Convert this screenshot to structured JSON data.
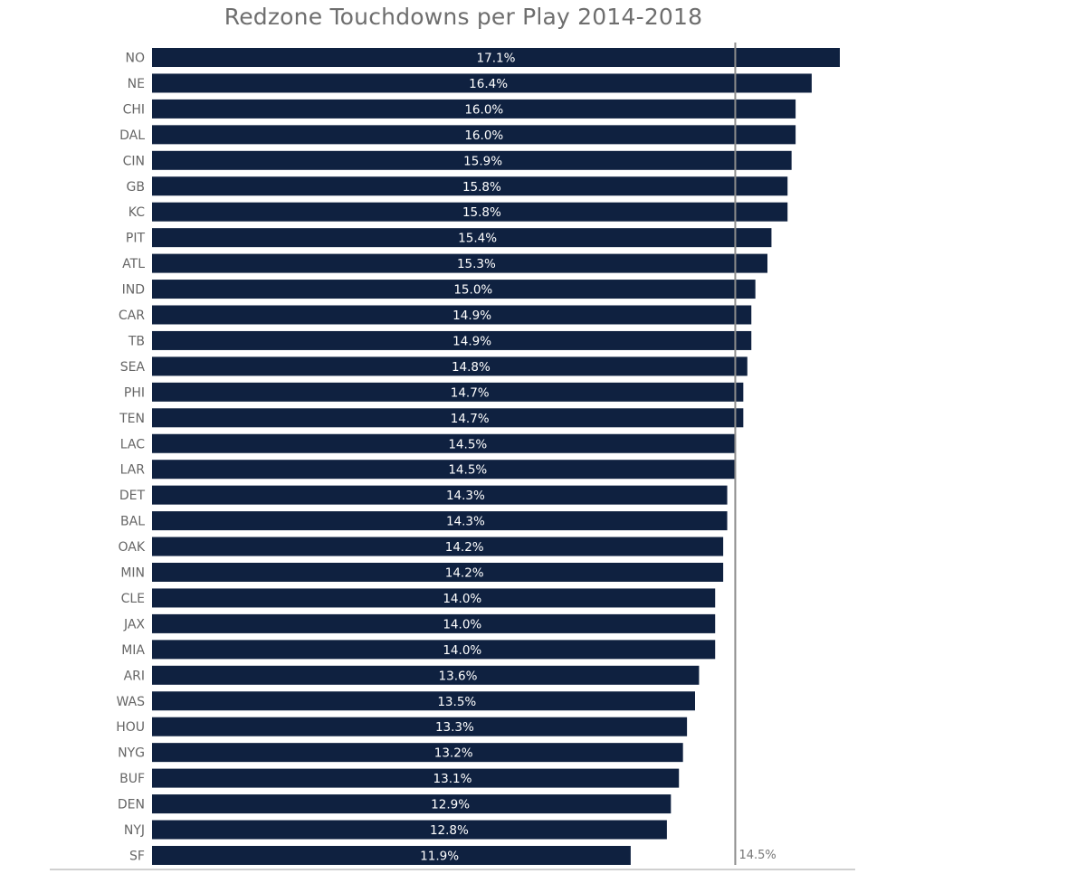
{
  "chart_data": {
    "type": "bar",
    "orientation": "horizontal",
    "title": "Redzone Touchdowns per Play 2014-2018",
    "xlabel": "",
    "ylabel": "",
    "xlim": [
      0,
      17.1
    ],
    "value_suffix": "%",
    "categories": [
      "NO",
      "NE",
      "CHI",
      "DAL",
      "CIN",
      "GB",
      "KC",
      "PIT",
      "ATL",
      "IND",
      "CAR",
      "TB",
      "SEA",
      "PHI",
      "TEN",
      "LAC",
      "LAR",
      "DET",
      "BAL",
      "OAK",
      "MIN",
      "CLE",
      "JAX",
      "MIA",
      "ARI",
      "WAS",
      "HOU",
      "NYG",
      "BUF",
      "DEN",
      "NYJ",
      "SF"
    ],
    "values": [
      17.1,
      16.4,
      16.0,
      16.0,
      15.9,
      15.8,
      15.8,
      15.4,
      15.3,
      15.0,
      14.9,
      14.9,
      14.8,
      14.7,
      14.7,
      14.5,
      14.5,
      14.3,
      14.3,
      14.2,
      14.2,
      14.0,
      14.0,
      14.0,
      13.6,
      13.5,
      13.3,
      13.2,
      13.1,
      12.9,
      12.8,
      11.9
    ],
    "value_labels": [
      "17.1%",
      "16.4%",
      "16.0%",
      "16.0%",
      "15.9%",
      "15.8%",
      "15.8%",
      "15.4%",
      "15.3%",
      "15.0%",
      "14.9%",
      "14.9%",
      "14.8%",
      "14.7%",
      "14.7%",
      "14.5%",
      "14.5%",
      "14.3%",
      "14.3%",
      "14.2%",
      "14.2%",
      "14.0%",
      "14.0%",
      "14.0%",
      "13.6%",
      "13.5%",
      "13.3%",
      "13.2%",
      "13.1%",
      "12.9%",
      "12.8%",
      "11.9%"
    ],
    "reference_line": {
      "value": 14.5,
      "label": "14.5%"
    },
    "grid": false,
    "colors": {
      "bar": "#0f2140",
      "reference_line": "#8c8c8c",
      "baseline": "#d0d0d0"
    }
  }
}
